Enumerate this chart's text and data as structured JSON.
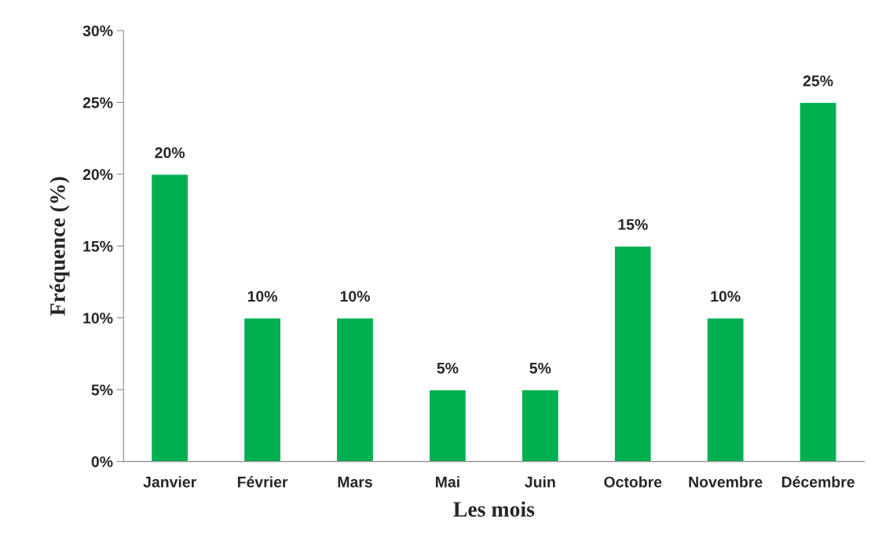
{
  "chart_data": {
    "type": "bar",
    "xlabel": "Les mois",
    "ylabel": "Fréquence (%)",
    "categories": [
      "Janvier",
      "Février",
      "Mars",
      "Mai",
      "Juin",
      "Octobre",
      "Novembre",
      "Décembre"
    ],
    "values": [
      20,
      10,
      10,
      5,
      5,
      15,
      10,
      25
    ],
    "value_labels": [
      "20%",
      "10%",
      "10%",
      "5%",
      "5%",
      "15%",
      "10%",
      "25%"
    ],
    "color": "#00b050",
    "ylim": [
      0,
      30
    ],
    "yticks": [
      {
        "value": 0,
        "label": "0%"
      },
      {
        "value": 5,
        "label": "5%"
      },
      {
        "value": 10,
        "label": "10%"
      },
      {
        "value": 15,
        "label": "15%"
      },
      {
        "value": 20,
        "label": "20%"
      },
      {
        "value": 25,
        "label": "25%"
      },
      {
        "value": 30,
        "label": "30%"
      }
    ],
    "grid": false,
    "legend": false
  }
}
